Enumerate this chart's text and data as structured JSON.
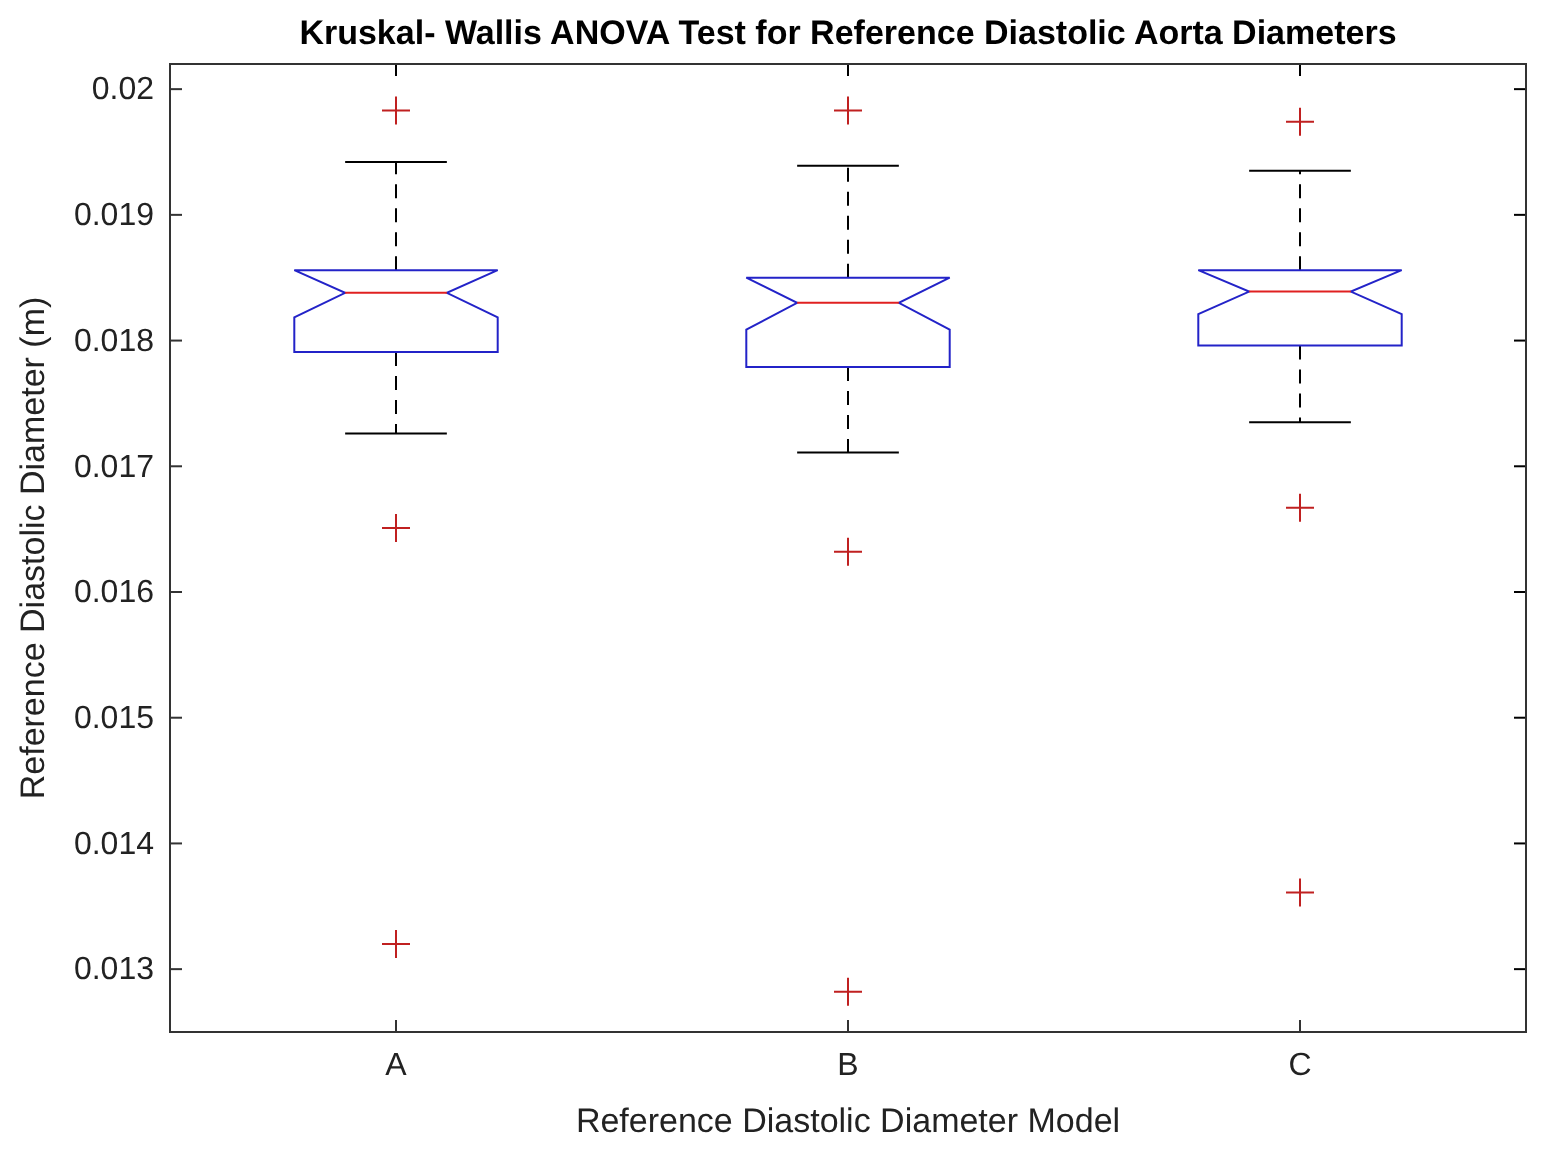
{
  "chart_data": {
    "type": "box",
    "title": "Kruskal- Wallis ANOVA Test for Reference Diastolic Aorta Diameters",
    "xlabel": "Reference Diastolic Diameter Model",
    "ylabel": "Reference Diastolic Diameter (m)",
    "categories": [
      "A",
      "B",
      "C"
    ],
    "boxes": [
      {
        "low": 0.01726,
        "q1": 0.01791,
        "median": 0.01838,
        "q3": 0.01856,
        "high": 0.01942,
        "outliers": [
          0.01983,
          0.01651,
          0.0132
        ]
      },
      {
        "low": 0.01711,
        "q1": 0.01779,
        "median": 0.0183,
        "q3": 0.0185,
        "high": 0.01939,
        "outliers": [
          0.01983,
          0.01632,
          0.01282
        ]
      },
      {
        "low": 0.01735,
        "q1": 0.01796,
        "median": 0.01839,
        "q3": 0.01856,
        "high": 0.01935,
        "outliers": [
          0.01974,
          0.01667,
          0.01361
        ]
      }
    ],
    "color": "#2323c8",
    "ylim": [
      0.0125,
      0.0202
    ],
    "yticks": [
      0.013,
      0.014,
      0.015,
      0.016,
      0.017,
      0.018,
      0.019,
      {
        "value": 0.02,
        "label": "0.02"
      }
    ],
    "marker": "cross",
    "grid": false
  }
}
